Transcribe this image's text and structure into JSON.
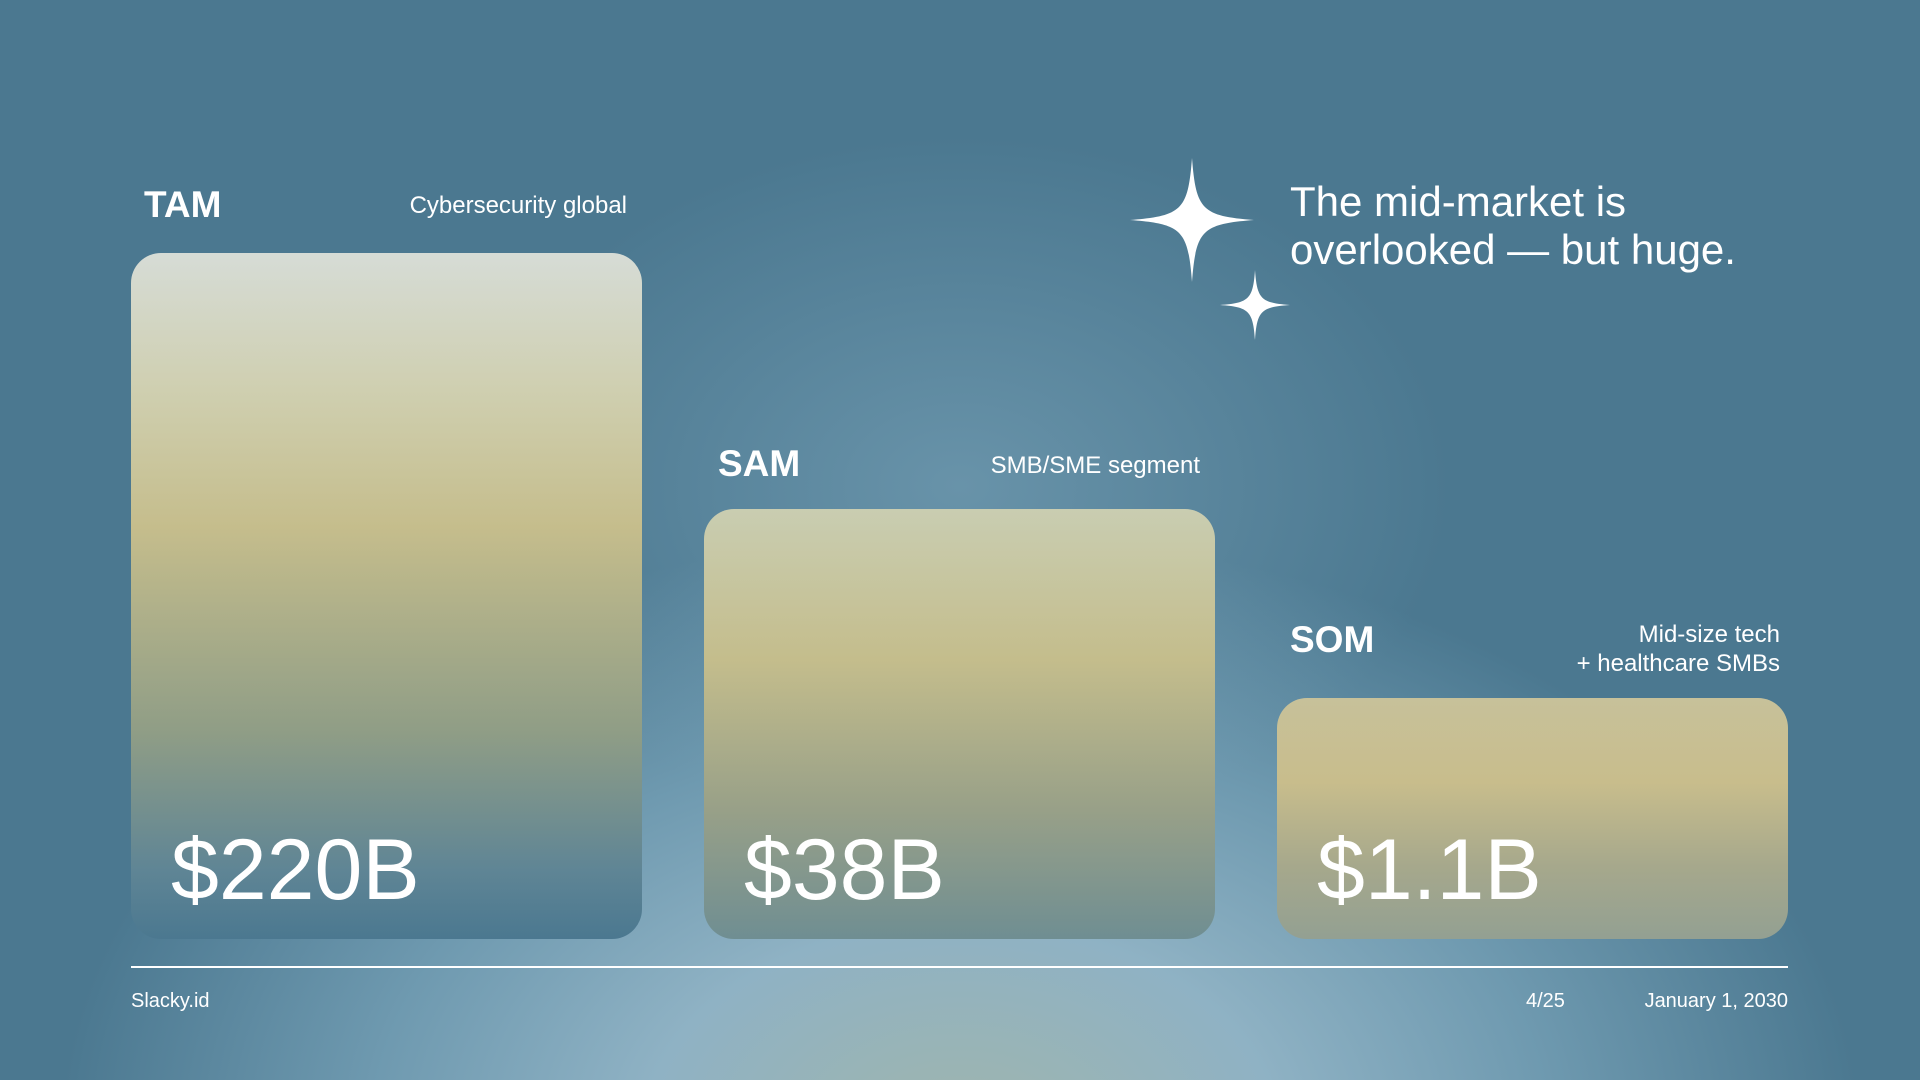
{
  "headline": {
    "line1": "The mid-market is",
    "line2": "overlooked — but huge."
  },
  "markets": [
    {
      "label": "TAM",
      "description": "Cybersecurity global",
      "value": "$220B"
    },
    {
      "label": "SAM",
      "description": "SMB/SME segment",
      "value": "$38B"
    },
    {
      "label": "SOM",
      "description_line1": "Mid-size tech",
      "description_line2": "+ healthcare SMBs",
      "value": "$1.1B"
    }
  ],
  "footer": {
    "brand": "Slacky.id",
    "page": "4/25",
    "date": "January 1, 2030"
  },
  "icons": [
    "sparkle-large-icon",
    "sparkle-small-icon"
  ]
}
